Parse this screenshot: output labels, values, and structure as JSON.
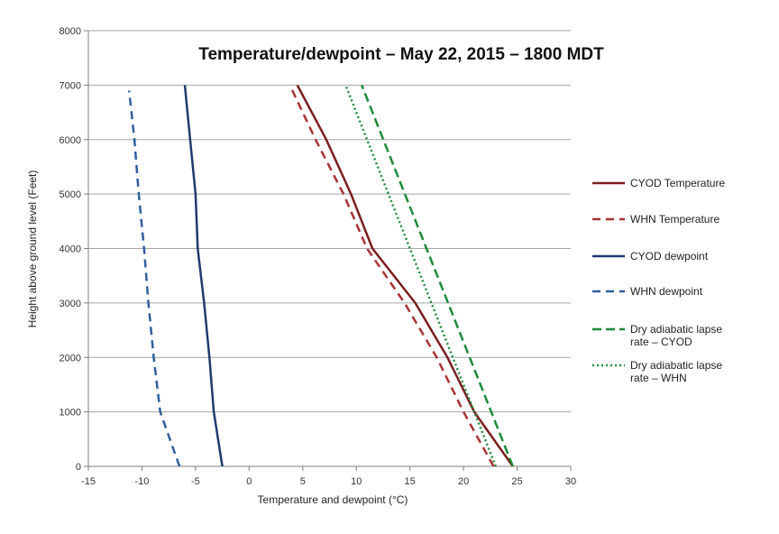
{
  "chart_data": {
    "type": "line",
    "title": "Temperature/dewpoint – May 22, 2015 – 1800 MDT",
    "xlabel": "Temperature and dewpoint (°C)",
    "ylabel": "Height above ground level (Feet)",
    "xlim": [
      -15,
      30
    ],
    "ylim": [
      0,
      8000
    ],
    "x_ticks": [
      -15,
      -10,
      -5,
      0,
      5,
      10,
      15,
      20,
      25,
      30
    ],
    "y_ticks": [
      0,
      1000,
      2000,
      3000,
      4000,
      5000,
      6000,
      7000,
      8000
    ],
    "x_tick_labels": [
      "-15",
      "-10",
      "-5",
      "0",
      "5",
      "10",
      "15",
      "20",
      "25",
      "30"
    ],
    "y_tick_labels": [
      "0",
      "1000",
      "2000",
      "3000",
      "4000",
      "5000",
      "6000",
      "7000",
      "8000"
    ],
    "grid": "horizontal",
    "legend_position": "right",
    "series": [
      {
        "name": "CYOD Temperature",
        "legend_lines": [
          "CYOD Temperature"
        ],
        "color": "#7a1e1e",
        "style": "solid",
        "points": [
          [
            24.6,
            0
          ],
          [
            21.0,
            1000
          ],
          [
            18.5,
            2000
          ],
          [
            15.5,
            3000
          ],
          [
            11.5,
            4000
          ],
          [
            9.5,
            5000
          ],
          [
            7.2,
            6000
          ],
          [
            4.5,
            7000
          ]
        ]
      },
      {
        "name": "WHN Temperature",
        "legend_lines": [
          "WHN Temperature"
        ],
        "color": "#a83232",
        "style": "dashed",
        "points": [
          [
            22.8,
            0
          ],
          [
            20.0,
            1000
          ],
          [
            17.5,
            2000
          ],
          [
            14.5,
            3000
          ],
          [
            11.0,
            4000
          ],
          [
            8.8,
            5000
          ],
          [
            6.2,
            6000
          ],
          [
            3.8,
            7000
          ]
        ]
      },
      {
        "name": "CYOD dewpoint",
        "legend_lines": [
          "CYOD dewpoint"
        ],
        "color": "#1f3a6e",
        "style": "solid",
        "points": [
          [
            -2.5,
            0
          ],
          [
            -3.3,
            1000
          ],
          [
            -3.7,
            2000
          ],
          [
            -4.2,
            3000
          ],
          [
            -4.8,
            4000
          ],
          [
            -5.0,
            5000
          ],
          [
            -5.5,
            6000
          ],
          [
            -6.0,
            7000
          ]
        ]
      },
      {
        "name": "WHN dewpoint",
        "legend_lines": [
          "WHN dewpoint"
        ],
        "color": "#2f5f9e",
        "style": "dashed",
        "points": [
          [
            -6.5,
            0
          ],
          [
            -8.3,
            1000
          ],
          [
            -8.9,
            2000
          ],
          [
            -9.4,
            3000
          ],
          [
            -9.8,
            4000
          ],
          [
            -10.3,
            5000
          ],
          [
            -10.7,
            6000
          ],
          [
            -11.2,
            6900
          ]
        ]
      },
      {
        "name": "Dry adiabatic lapse rate – CYOD",
        "legend_lines": [
          "Dry adiabatic lapse",
          "rate – CYOD"
        ],
        "color": "#1e8a3a",
        "style": "longdash",
        "points": [
          [
            24.6,
            0
          ],
          [
            10.5,
            7000
          ]
        ]
      },
      {
        "name": "Dry adiabatic lapse rate – WHN",
        "legend_lines": [
          "Dry adiabatic lapse",
          "rate – WHN"
        ],
        "color": "#1e8a3a",
        "style": "dotted",
        "points": [
          [
            23.0,
            0
          ],
          [
            9.0,
            7000
          ]
        ]
      }
    ]
  }
}
